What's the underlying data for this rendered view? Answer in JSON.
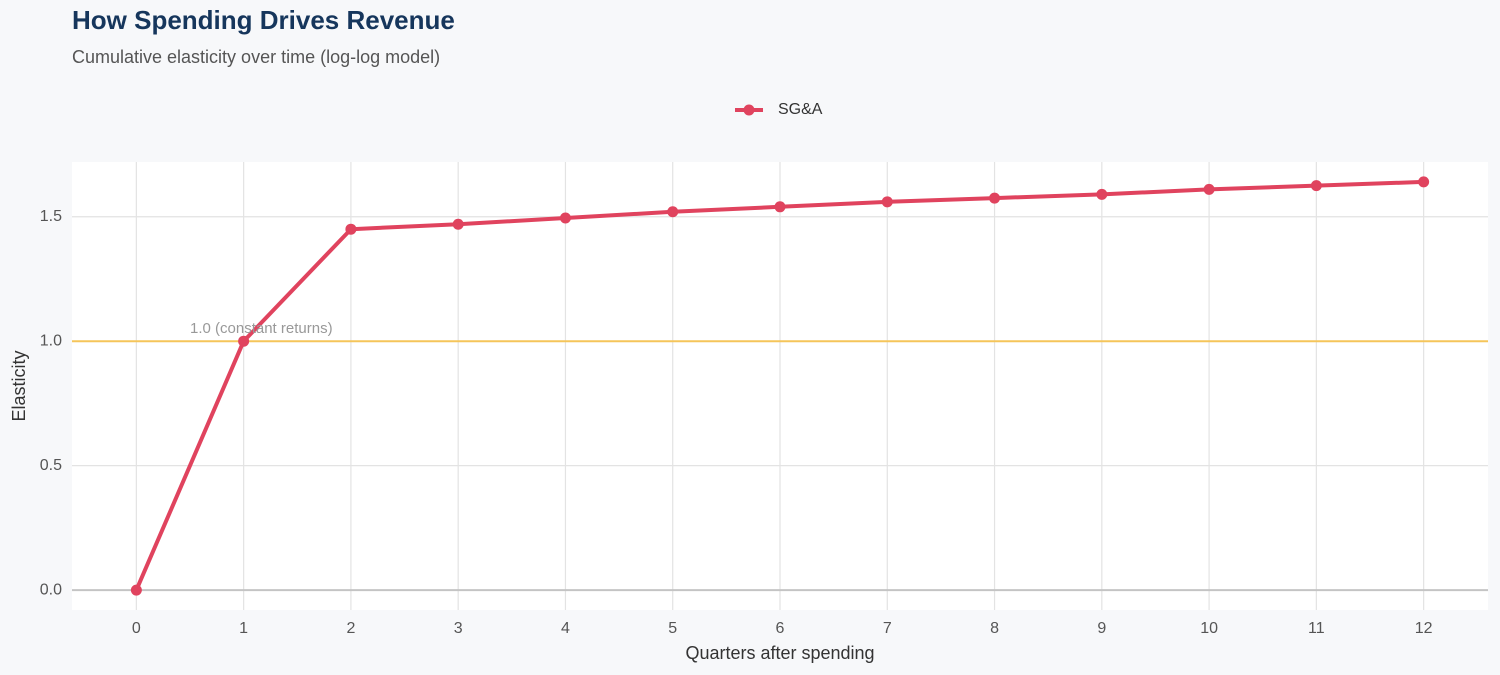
{
  "chart_data": {
    "type": "line",
    "title": "How Spending Drives Revenue",
    "subtitle": "Cumulative elasticity over time (log-log model)",
    "x_label": "Quarters after spending",
    "y_label": "Elasticity",
    "x": [
      0,
      1,
      2,
      3,
      4,
      5,
      6,
      7,
      8,
      9,
      10,
      11,
      12
    ],
    "series": [
      {
        "name": "SG&A",
        "color": "#e0435e",
        "values": [
          0,
          1.0,
          1.45,
          1.47,
          1.495,
          1.52,
          1.54,
          1.56,
          1.575,
          1.59,
          1.61,
          1.625,
          1.64
        ]
      }
    ],
    "xlim": [
      -0.6,
      12.6
    ],
    "xticks": [
      0,
      1,
      2,
      3,
      4,
      5,
      6,
      7,
      8,
      9,
      10,
      11,
      12
    ],
    "ylim": [
      -0.08,
      1.72
    ],
    "yticks": [
      {
        "value": 0,
        "label": "0.0"
      },
      0.5,
      {
        "value": 1,
        "label": "1.0"
      },
      1.5
    ],
    "reference_line": {
      "value": 1,
      "label": "1.0 (constant returns)",
      "color": "#f5c55a"
    },
    "grid": true,
    "legend": "top"
  }
}
